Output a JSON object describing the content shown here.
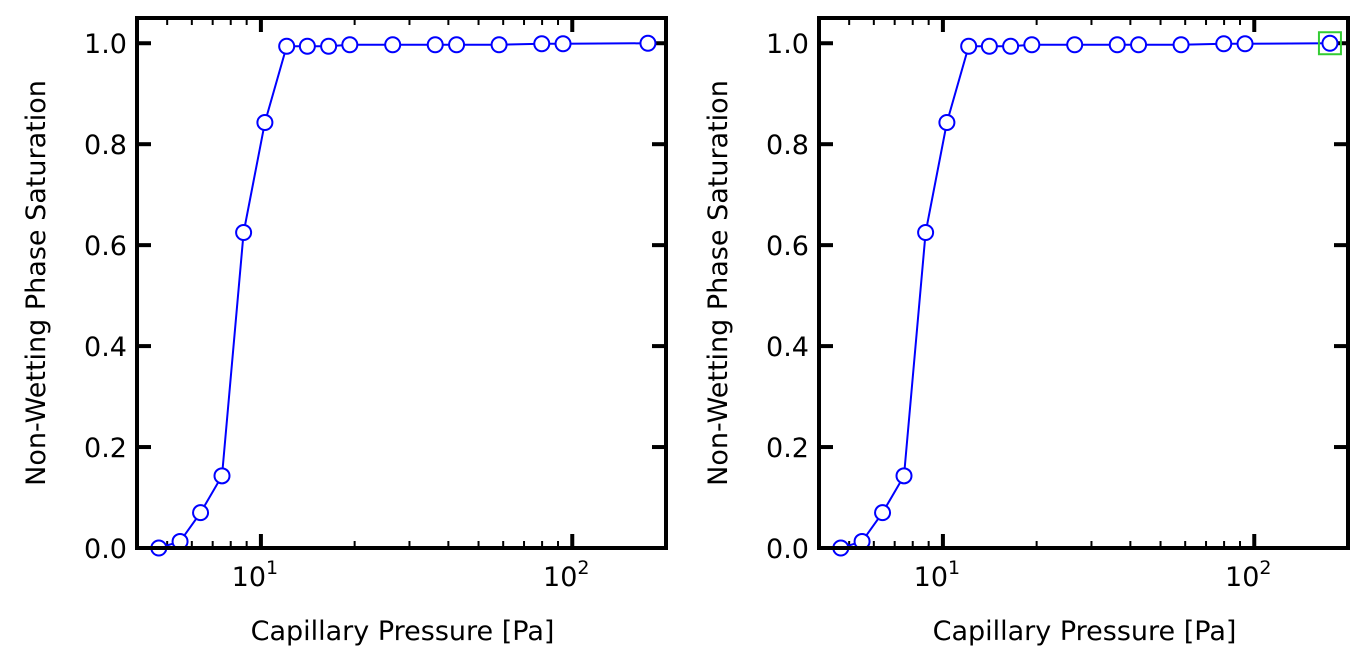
{
  "chart_data": [
    {
      "type": "line",
      "xscale": "log",
      "xlabel": "Capillary Pressure [Pa]",
      "ylabel": "Non-Wetting Phase Saturation",
      "xlim": [
        4.0,
        200
      ],
      "ylim": [
        0.0,
        1.05
      ],
      "grid": false,
      "xticks": [
        {
          "base": "10",
          "exp": "1",
          "value": 10
        },
        {
          "base": "10",
          "exp": "2",
          "value": 100
        }
      ],
      "yticks": [
        "0.0",
        "0.2",
        "0.4",
        "0.6",
        "0.8",
        "1.0"
      ],
      "series": [
        {
          "color": "#0000ff",
          "marker": "circle-open",
          "x": [
            4.7,
            5.5,
            6.4,
            7.5,
            8.8,
            10.3,
            12.1,
            14.1,
            16.5,
            19.3,
            26.5,
            36.3,
            42.5,
            58.2,
            79.8,
            93.4,
            175
          ],
          "y": [
            0.0,
            0.013,
            0.07,
            0.143,
            0.625,
            0.843,
            0.994,
            0.994,
            0.994,
            0.997,
            0.997,
            0.997,
            0.997,
            0.997,
            0.999,
            0.999,
            1.0
          ]
        }
      ]
    },
    {
      "type": "line",
      "xscale": "log",
      "xlabel": "Capillary Pressure [Pa]",
      "ylabel": "Non-Wetting Phase Saturation",
      "xlim": [
        4.0,
        200
      ],
      "ylim": [
        0.0,
        1.05
      ],
      "grid": false,
      "xticks": [
        {
          "base": "10",
          "exp": "1",
          "value": 10
        },
        {
          "base": "10",
          "exp": "2",
          "value": 100
        }
      ],
      "yticks": [
        "0.0",
        "0.2",
        "0.4",
        "0.6",
        "0.8",
        "1.0"
      ],
      "series": [
        {
          "color": "#0000ff",
          "marker": "circle-open",
          "x": [
            4.7,
            5.5,
            6.4,
            7.5,
            8.8,
            10.3,
            12.1,
            14.1,
            16.5,
            19.3,
            26.5,
            36.3,
            42.5,
            58.2,
            79.8,
            93.4,
            175
          ],
          "y": [
            0.0,
            0.013,
            0.07,
            0.143,
            0.625,
            0.843,
            0.994,
            0.994,
            0.994,
            0.997,
            0.997,
            0.997,
            0.997,
            0.997,
            0.999,
            0.999,
            1.0
          ]
        }
      ],
      "highlight": {
        "x": 175,
        "y": 1.0,
        "color": "#33cc33",
        "shape": "square"
      }
    }
  ]
}
